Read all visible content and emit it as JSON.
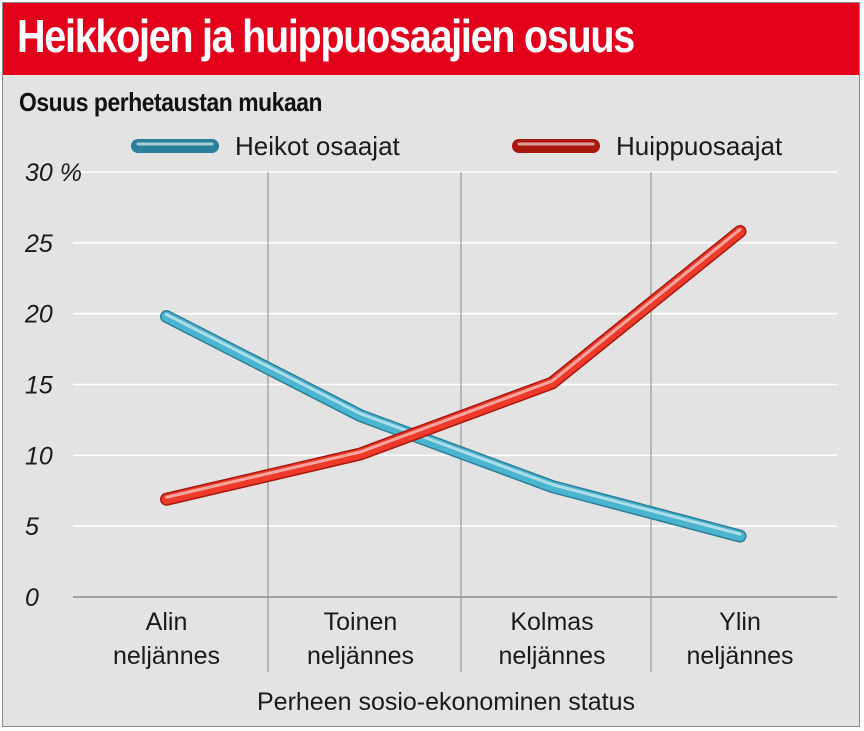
{
  "title": "Heikkojen ja huippuosaajien osuus",
  "subtitle": "Osuus perhetaustan mukaan",
  "colors": {
    "title_bar": "#e3001b",
    "background": "#e4e3e3",
    "series_weak": "#4bb4cf",
    "series_top": "#ee3a2a"
  },
  "chart_data": {
    "type": "line",
    "title": "Heikkojen ja huippuosaajien osuus",
    "subtitle": "Osuus perhetaustan mukaan",
    "xlabel": "Perheen sosio-ekonominen status",
    "ylabel": "",
    "ylim": [
      0,
      30
    ],
    "yticks": [
      0,
      5,
      10,
      15,
      20,
      25,
      30
    ],
    "ytick_labels": [
      "0",
      "5",
      "10",
      "15",
      "20",
      "25",
      "30 %"
    ],
    "grid": true,
    "legend_position": "top",
    "categories": [
      [
        "Alin",
        "neljännes"
      ],
      [
        "Toinen",
        "neljännes"
      ],
      [
        "Kolmas",
        "neljännes"
      ],
      [
        "Ylin",
        "neljännes"
      ]
    ],
    "series": [
      {
        "name": "Heikot osaajat",
        "color": "#4bb4cf",
        "values": [
          19.8,
          12.8,
          7.8,
          4.3
        ]
      },
      {
        "name": "Huippuosaajat",
        "color": "#ee3a2a",
        "values": [
          6.9,
          10.1,
          15.1,
          25.8
        ]
      }
    ]
  }
}
